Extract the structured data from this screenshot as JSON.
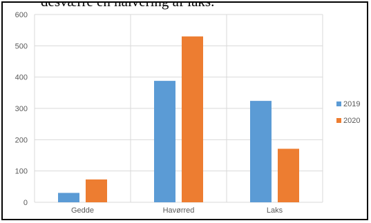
{
  "caption_fragment": "desværre en halvering af laks.",
  "chart_data": {
    "type": "bar",
    "categories": [
      "Gedde",
      "Havørred",
      "Laks"
    ],
    "series": [
      {
        "name": "2019",
        "values": [
          30,
          388,
          324
        ],
        "color": "#5B9BD5"
      },
      {
        "name": "2020",
        "values": [
          73,
          530,
          171
        ],
        "color": "#ED7D31"
      }
    ],
    "ylim": [
      0,
      600
    ],
    "yticks": [
      0,
      100,
      200,
      300,
      400,
      500,
      600
    ],
    "xlabel": "",
    "ylabel": "",
    "title": "",
    "grid": "horizontal",
    "category_separators": true,
    "legend_position": "right"
  }
}
